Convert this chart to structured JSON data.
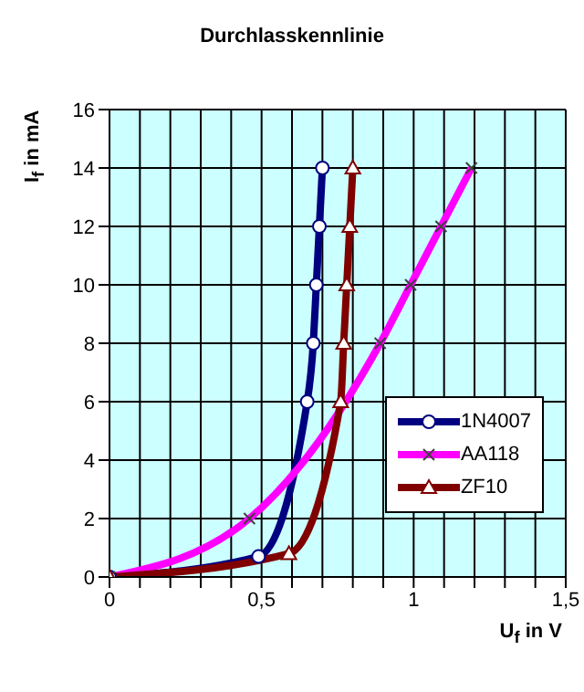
{
  "chart_data": {
    "type": "line",
    "title": "Durchlasskennlinie",
    "xlabel": "U$_{f}$ in V",
    "ylabel": "I$_{f}$ in mA",
    "xlim": [
      0,
      1.5
    ],
    "xticks": [
      {
        "value": 0,
        "label": "0"
      },
      {
        "value": 0.1,
        "label": null
      },
      {
        "value": 0.2,
        "label": null
      },
      {
        "value": 0.3,
        "label": null
      },
      {
        "value": 0.4,
        "label": null
      },
      {
        "value": 0.5,
        "label": "0,5"
      },
      {
        "value": 0.6,
        "label": null
      },
      {
        "value": 0.7,
        "label": null
      },
      {
        "value": 0.8,
        "label": null
      },
      {
        "value": 0.9,
        "label": null
      },
      {
        "value": 1,
        "label": "1"
      },
      {
        "value": 1.1,
        "label": null
      },
      {
        "value": 1.2,
        "label": null
      },
      {
        "value": 1.3,
        "label": null
      },
      {
        "value": 1.4,
        "label": null
      },
      {
        "value": 1.5,
        "label": "1,5"
      }
    ],
    "ylim": [
      0,
      16
    ],
    "yticks": [
      0,
      2,
      4,
      6,
      8,
      10,
      12,
      14,
      16
    ],
    "grid": true,
    "legend": "bottom right",
    "series": [
      {
        "name": "1N4007",
        "color": "#000080",
        "marker": "circle",
        "x": [
          0,
          0.49,
          0.65,
          0.67,
          0.68,
          0.69,
          0.7
        ],
        "values": [
          0,
          0.7,
          6,
          8,
          10,
          12,
          14
        ]
      },
      {
        "name": "AA118",
        "color": "#ff00ff",
        "marker": "cross",
        "x": [
          0,
          0.46,
          0.89,
          0.99,
          1.09,
          1.19
        ],
        "values": [
          0,
          2,
          8,
          10,
          12,
          14
        ]
      },
      {
        "name": "ZF10",
        "color": "#800000",
        "marker": "triangle",
        "x": [
          0,
          0.59,
          0.76,
          0.77,
          0.78,
          0.79,
          0.8
        ],
        "values": [
          0,
          0.8,
          6,
          8,
          10,
          12,
          14
        ]
      }
    ]
  }
}
